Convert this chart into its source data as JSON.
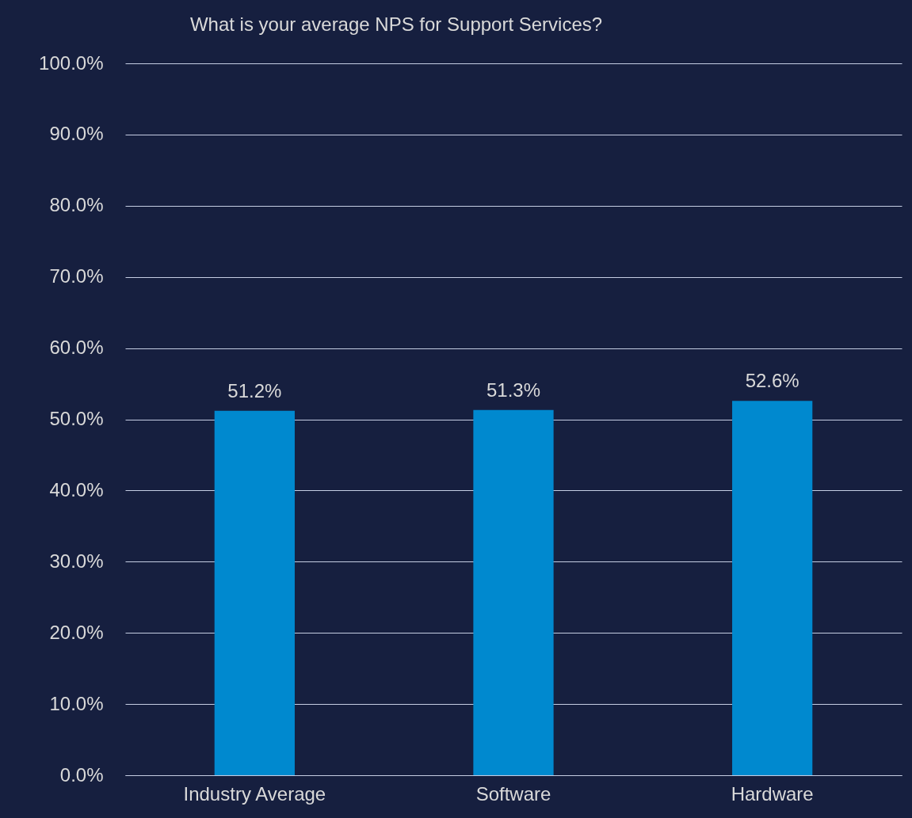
{
  "chart_data": {
    "type": "bar",
    "title": "What is your average NPS for Support Services?",
    "categories": [
      "Industry Average",
      "Software",
      "Hardware"
    ],
    "values": [
      51.2,
      51.3,
      52.6
    ],
    "value_labels": [
      "51.2%",
      "51.3%",
      "52.6%"
    ],
    "color": "#0089cf",
    "ylim": [
      0,
      100
    ],
    "yticks": [
      {
        "value": 0,
        "label": "0.0%"
      },
      {
        "value": 10,
        "label": "10.0%"
      },
      {
        "value": 20,
        "label": "20.0%"
      },
      {
        "value": 30,
        "label": "30.0%"
      },
      {
        "value": 40,
        "label": "40.0%"
      },
      {
        "value": 50,
        "label": "50.0%"
      },
      {
        "value": 60,
        "label": "60.0%"
      },
      {
        "value": 70,
        "label": "70.0%"
      },
      {
        "value": 80,
        "label": "80.0%"
      },
      {
        "value": 90,
        "label": "90.0%"
      },
      {
        "value": 100,
        "label": "100.0%"
      }
    ],
    "grid": "y"
  }
}
